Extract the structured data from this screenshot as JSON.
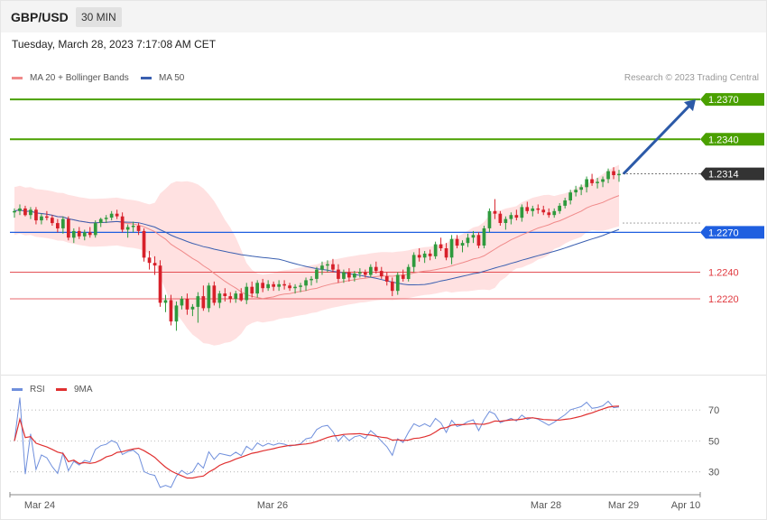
{
  "header": {
    "symbol": "GBP/USD",
    "timeframe": "30 MIN",
    "datetime": "Tuesday, March 28, 2023 7:17:08 AM CET"
  },
  "legend": {
    "ma20_label": "MA 20 + Bollinger Bands",
    "ma50_label": "MA 50",
    "rsi_label": "RSI",
    "ma9_label": "9MA",
    "credit": "Research © 2023 Trading Central"
  },
  "colors": {
    "resistance": "#4aa000",
    "current": "#333333",
    "pivot": "#1f5fe0",
    "support": "#e0383e",
    "up_candle": "#2e9a3d",
    "down_candle": "#d7202a",
    "ma20": "#f08a8a",
    "ma50": "#3a5fb0",
    "bands_fill": "#ffe1e1",
    "rsi": "#6f8fdc",
    "rsi_ma": "#e03030",
    "arrow": "#2c5aa8"
  },
  "chart_data": [
    {
      "type": "candlestick",
      "title": "GBP/USD",
      "x_labels": [
        "Mar 24",
        "Mar 26",
        "Mar 28",
        "Mar 29",
        "Apr 10"
      ],
      "ylim": [
        1.2165,
        1.2385
      ],
      "levels": [
        {
          "value": 1.237,
          "label": "1.2370",
          "role": "resistance"
        },
        {
          "value": 1.234,
          "label": "1.2340",
          "role": "resistance"
        },
        {
          "value": 1.2314,
          "label": "1.2314",
          "role": "current"
        },
        {
          "value": 1.227,
          "label": "1.2270",
          "role": "pivot"
        },
        {
          "value": 1.224,
          "label": "1.2240",
          "role": "support"
        },
        {
          "value": 1.222,
          "label": "1.2220",
          "role": "support"
        }
      ],
      "indicators": [
        "MA 20 + Bollinger Bands",
        "MA 50"
      ],
      "projection": {
        "from": 1.2314,
        "to": 1.237,
        "direction": "up"
      },
      "candles": [
        [
          1.2285,
          1.2288,
          1.2281,
          1.2286
        ],
        [
          1.2286,
          1.2291,
          1.2283,
          1.2288
        ],
        [
          1.2288,
          1.229,
          1.2282,
          1.2283
        ],
        [
          1.2283,
          1.2289,
          1.228,
          1.2287
        ],
        [
          1.2287,
          1.2289,
          1.2276,
          1.2279
        ],
        [
          1.2279,
          1.2284,
          1.2276,
          1.2282
        ],
        [
          1.2282,
          1.2286,
          1.2279,
          1.2281
        ],
        [
          1.2281,
          1.2283,
          1.2275,
          1.2277
        ],
        [
          1.2277,
          1.228,
          1.227,
          1.2273
        ],
        [
          1.2273,
          1.2282,
          1.2269,
          1.228
        ],
        [
          1.228,
          1.2282,
          1.2264,
          1.2266
        ],
        [
          1.2266,
          1.2273,
          1.2262,
          1.2271
        ],
        [
          1.2271,
          1.2274,
          1.2265,
          1.2267
        ],
        [
          1.2267,
          1.2272,
          1.2264,
          1.227
        ],
        [
          1.227,
          1.2274,
          1.2266,
          1.2268
        ],
        [
          1.2268,
          1.2279,
          1.2266,
          1.2277
        ],
        [
          1.2277,
          1.2281,
          1.2274,
          1.228
        ],
        [
          1.228,
          1.2283,
          1.2277,
          1.2281
        ],
        [
          1.2281,
          1.2286,
          1.2279,
          1.2284
        ],
        [
          1.2284,
          1.2287,
          1.228,
          1.2282
        ],
        [
          1.2282,
          1.2285,
          1.227,
          1.2272
        ],
        [
          1.2272,
          1.2276,
          1.2266,
          1.2274
        ],
        [
          1.2274,
          1.2278,
          1.227,
          1.2275
        ],
        [
          1.2275,
          1.2277,
          1.2268,
          1.2271
        ],
        [
          1.2271,
          1.2273,
          1.2248,
          1.2251
        ],
        [
          1.2251,
          1.2256,
          1.2242,
          1.2247
        ],
        [
          1.2247,
          1.2252,
          1.2238,
          1.2245
        ],
        [
          1.2245,
          1.2249,
          1.2214,
          1.2217
        ],
        [
          1.2217,
          1.2223,
          1.221,
          1.2219
        ],
        [
          1.2219,
          1.2223,
          1.22,
          1.2203
        ],
        [
          1.2203,
          1.2218,
          1.2196,
          1.2215
        ],
        [
          1.2215,
          1.2222,
          1.2212,
          1.222
        ],
        [
          1.222,
          1.2224,
          1.2208,
          1.2212
        ],
        [
          1.2212,
          1.2216,
          1.2207,
          1.2214
        ],
        [
          1.2214,
          1.2225,
          1.2202,
          1.2222
        ],
        [
          1.2222,
          1.223,
          1.2211,
          1.2213
        ],
        [
          1.2213,
          1.2232,
          1.221,
          1.223
        ],
        [
          1.223,
          1.2233,
          1.2215,
          1.2217
        ],
        [
          1.2217,
          1.2226,
          1.2213,
          1.2224
        ],
        [
          1.2224,
          1.2228,
          1.2218,
          1.2222
        ],
        [
          1.2222,
          1.2225,
          1.2217,
          1.222
        ],
        [
          1.222,
          1.2226,
          1.2217,
          1.2224
        ],
        [
          1.2224,
          1.2228,
          1.2218,
          1.2219
        ],
        [
          1.2219,
          1.2232,
          1.2216,
          1.2229
        ],
        [
          1.2229,
          1.2233,
          1.2221,
          1.2224
        ],
        [
          1.2224,
          1.2234,
          1.2221,
          1.2232
        ],
        [
          1.2232,
          1.2235,
          1.2225,
          1.2228
        ],
        [
          1.2228,
          1.2234,
          1.2226,
          1.2231
        ],
        [
          1.2231,
          1.2233,
          1.2226,
          1.2229
        ],
        [
          1.2229,
          1.2234,
          1.2226,
          1.2231
        ],
        [
          1.2231,
          1.2234,
          1.2227,
          1.223
        ],
        [
          1.223,
          1.2232,
          1.2226,
          1.2228
        ],
        [
          1.2228,
          1.2231,
          1.2224,
          1.2229
        ],
        [
          1.2229,
          1.2232,
          1.2225,
          1.223
        ],
        [
          1.223,
          1.2236,
          1.2226,
          1.2234
        ],
        [
          1.2234,
          1.2237,
          1.223,
          1.2235
        ],
        [
          1.2235,
          1.2244,
          1.2232,
          1.2242
        ],
        [
          1.2242,
          1.2248,
          1.2238,
          1.2245
        ],
        [
          1.2245,
          1.2249,
          1.224,
          1.2246
        ],
        [
          1.2246,
          1.225,
          1.224,
          1.2242
        ],
        [
          1.2242,
          1.2246,
          1.2232,
          1.2235
        ],
        [
          1.2235,
          1.2242,
          1.2232,
          1.224
        ],
        [
          1.224,
          1.2243,
          1.2233,
          1.2236
        ],
        [
          1.2236,
          1.2241,
          1.2233,
          1.2239
        ],
        [
          1.2239,
          1.2243,
          1.2236,
          1.224
        ],
        [
          1.224,
          1.2242,
          1.2236,
          1.2238
        ],
        [
          1.2238,
          1.2246,
          1.2236,
          1.2244
        ],
        [
          1.2244,
          1.2248,
          1.2239,
          1.2241
        ],
        [
          1.2241,
          1.2244,
          1.2235,
          1.2237
        ],
        [
          1.2237,
          1.224,
          1.223,
          1.2233
        ],
        [
          1.2233,
          1.2236,
          1.2222,
          1.2226
        ],
        [
          1.2226,
          1.224,
          1.2223,
          1.2238
        ],
        [
          1.2238,
          1.2242,
          1.2233,
          1.2235
        ],
        [
          1.2235,
          1.2246,
          1.2233,
          1.2244
        ],
        [
          1.2244,
          1.2255,
          1.224,
          1.2253
        ],
        [
          1.2253,
          1.2258,
          1.2248,
          1.2251
        ],
        [
          1.2251,
          1.2256,
          1.2247,
          1.2254
        ],
        [
          1.2254,
          1.2257,
          1.2249,
          1.2252
        ],
        [
          1.2252,
          1.2263,
          1.225,
          1.2261
        ],
        [
          1.2261,
          1.2266,
          1.2256,
          1.2258
        ],
        [
          1.2258,
          1.2262,
          1.2249,
          1.2251
        ],
        [
          1.2251,
          1.2268,
          1.2246,
          1.2265
        ],
        [
          1.2265,
          1.2268,
          1.2258,
          1.226
        ],
        [
          1.226,
          1.2264,
          1.2255,
          1.2262
        ],
        [
          1.2262,
          1.2269,
          1.2259,
          1.2266
        ],
        [
          1.2266,
          1.2271,
          1.2262,
          1.2268
        ],
        [
          1.2268,
          1.227,
          1.2258,
          1.226
        ],
        [
          1.226,
          1.2275,
          1.2258,
          1.2273
        ],
        [
          1.2273,
          1.2288,
          1.227,
          1.2286
        ],
        [
          1.2286,
          1.2295,
          1.228,
          1.2284
        ],
        [
          1.2284,
          1.2286,
          1.2275,
          1.2277
        ],
        [
          1.2277,
          1.2282,
          1.2272,
          1.228
        ],
        [
          1.228,
          1.2285,
          1.2276,
          1.2283
        ],
        [
          1.2283,
          1.2287,
          1.2279,
          1.2281
        ],
        [
          1.2281,
          1.2291,
          1.2278,
          1.2289
        ],
        [
          1.2289,
          1.2293,
          1.2284,
          1.2286
        ],
        [
          1.2286,
          1.229,
          1.2282,
          1.2288
        ],
        [
          1.2288,
          1.2291,
          1.2284,
          1.2287
        ],
        [
          1.2287,
          1.229,
          1.2283,
          1.2285
        ],
        [
          1.2285,
          1.2288,
          1.2281,
          1.2283
        ],
        [
          1.2283,
          1.2288,
          1.2281,
          1.2286
        ],
        [
          1.2286,
          1.2292,
          1.2284,
          1.229
        ],
        [
          1.229,
          1.2296,
          1.2288,
          1.2294
        ],
        [
          1.2294,
          1.2302,
          1.2291,
          1.23
        ],
        [
          1.23,
          1.2305,
          1.2297,
          1.2302
        ],
        [
          1.2302,
          1.2306,
          1.2298,
          1.2304
        ],
        [
          1.2304,
          1.2312,
          1.23,
          1.231
        ],
        [
          1.231,
          1.2314,
          1.2305,
          1.2307
        ],
        [
          1.2307,
          1.2311,
          1.2303,
          1.2308
        ],
        [
          1.2308,
          1.2312,
          1.2304,
          1.231
        ],
        [
          1.231,
          1.2318,
          1.2307,
          1.2316
        ],
        [
          1.2316,
          1.2319,
          1.231,
          1.2313
        ],
        [
          1.2313,
          1.2317,
          1.2308,
          1.2314
        ]
      ]
    },
    {
      "type": "line",
      "series": [
        {
          "name": "RSI"
        },
        {
          "name": "9MA"
        }
      ],
      "x_labels": [
        "Mar 24",
        "Mar 26",
        "Mar 28",
        "Mar 29",
        "Apr 10"
      ],
      "yticks": [
        70,
        50,
        30
      ],
      "ylim": [
        17,
        80
      ]
    }
  ]
}
